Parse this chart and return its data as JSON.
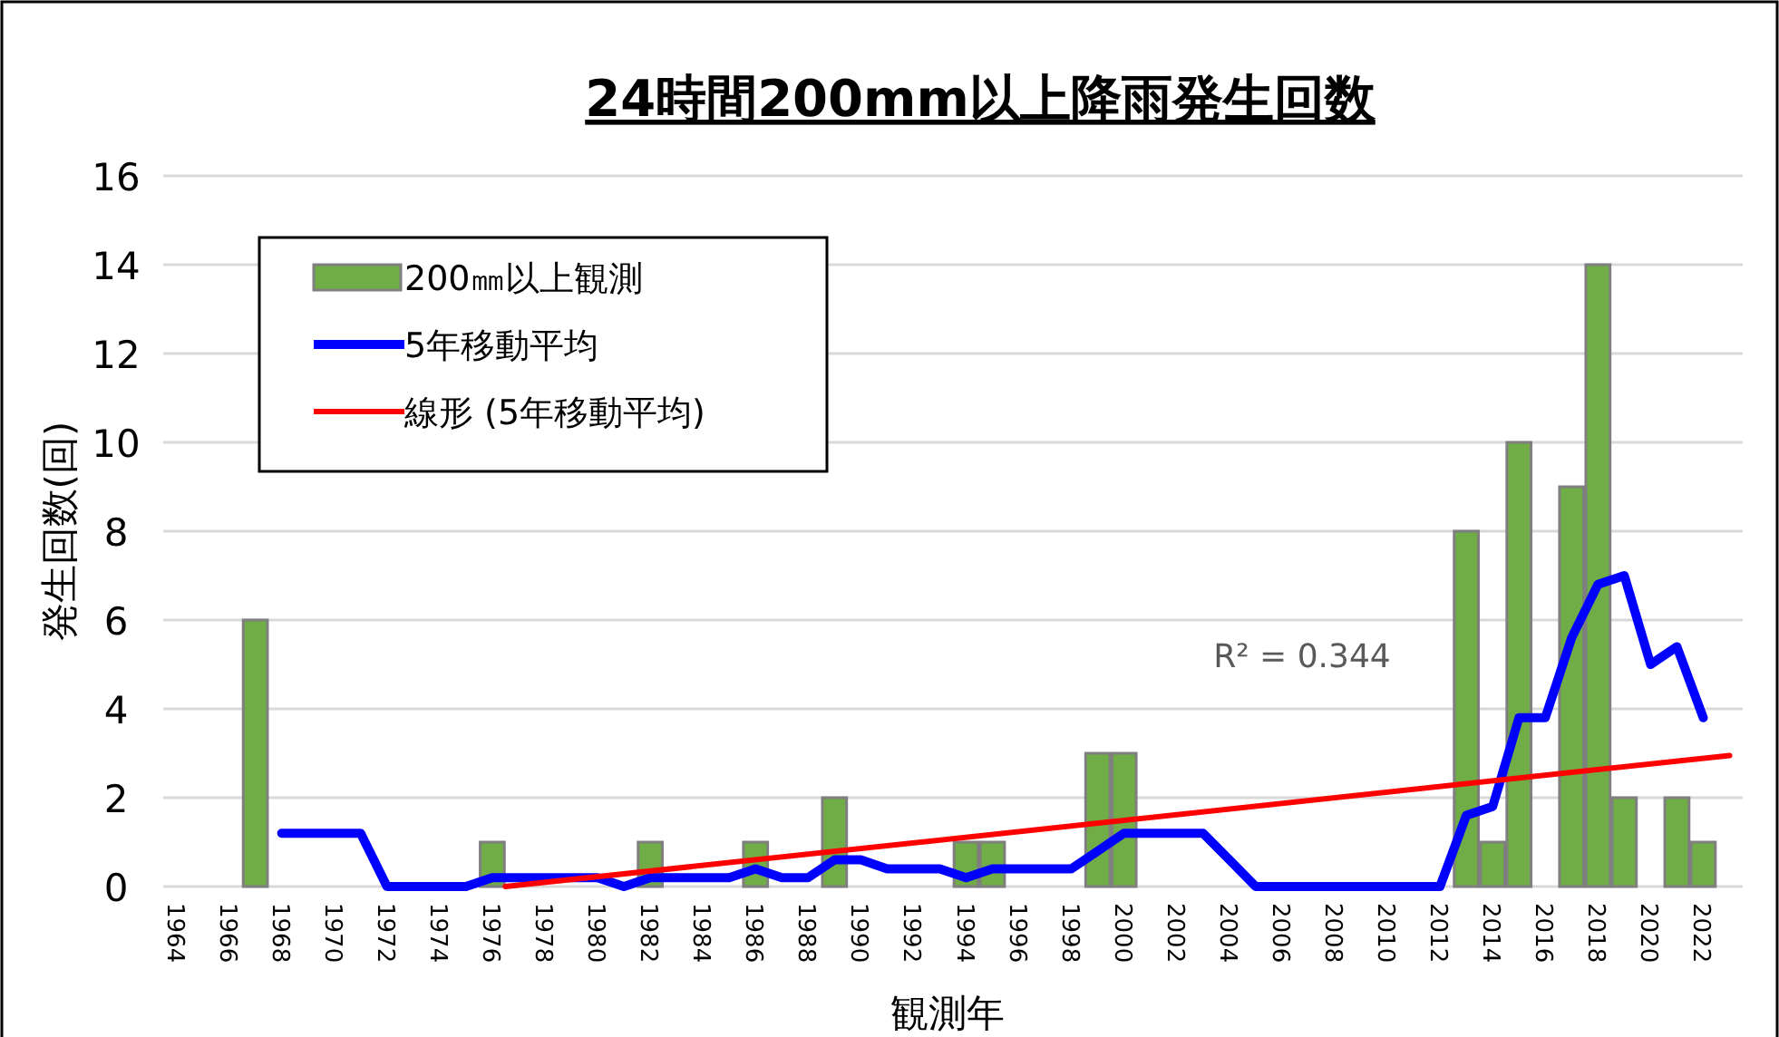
{
  "chart_data": {
    "type": "bar",
    "title": "24時間200mm以上降雨発生回数",
    "xlabel": "観測年",
    "ylabel": "発生回数(回)",
    "x": [
      1964,
      1965,
      1966,
      1967,
      1968,
      1969,
      1970,
      1971,
      1972,
      1973,
      1974,
      1975,
      1976,
      1977,
      1978,
      1979,
      1980,
      1981,
      1982,
      1983,
      1984,
      1985,
      1986,
      1987,
      1988,
      1989,
      1990,
      1991,
      1992,
      1993,
      1994,
      1995,
      1996,
      1997,
      1998,
      1999,
      2000,
      2001,
      2002,
      2003,
      2004,
      2005,
      2006,
      2007,
      2008,
      2009,
      2010,
      2011,
      2012,
      2013,
      2014,
      2015,
      2016,
      2017,
      2018,
      2019,
      2020,
      2021,
      2022
    ],
    "series": [
      {
        "name": "200㎜以上観測",
        "color": "#70ad47",
        "values": [
          0,
          0,
          0,
          6,
          0,
          0,
          0,
          0,
          0,
          0,
          0,
          0,
          1,
          0,
          0,
          0,
          0,
          0,
          1,
          0,
          0,
          0,
          1,
          0,
          0,
          2,
          0,
          0,
          0,
          0,
          1,
          1,
          0,
          0,
          0,
          3,
          3,
          0,
          0,
          0,
          0,
          0,
          0,
          0,
          0,
          0,
          0,
          0,
          0,
          8,
          1,
          10,
          0,
          9,
          14,
          2,
          0,
          2,
          1
        ]
      },
      {
        "name": "5年移動平均",
        "type": "line",
        "color": "#0000ff",
        "values": [
          null,
          null,
          null,
          null,
          1.2,
          1.2,
          1.2,
          1.2,
          0,
          0,
          0,
          0,
          0.2,
          0.2,
          0.2,
          0.2,
          0.2,
          0,
          0.2,
          0.2,
          0.2,
          0.2,
          0.4,
          0.2,
          0.2,
          0.6,
          0.6,
          0.4,
          0.4,
          0.4,
          0.2,
          0.4,
          0.4,
          0.4,
          0.4,
          0.8,
          1.2,
          1.2,
          1.2,
          1.2,
          0.6,
          0,
          0,
          0,
          0,
          0,
          0,
          0,
          0,
          1.6,
          1.8,
          3.8,
          3.8,
          5.6,
          6.8,
          7.0,
          5.0,
          5.4,
          3.8
        ]
      },
      {
        "name": "線形 (5年移動平均)",
        "type": "line",
        "color": "#ff0000",
        "x": [
          1976.5,
          2023
        ],
        "values": [
          0,
          2.95
        ]
      }
    ],
    "xlim": [
      1963.5,
      2023.5
    ],
    "xticks": [
      1964,
      1966,
      1968,
      1970,
      1972,
      1974,
      1976,
      1978,
      1980,
      1982,
      1984,
      1986,
      1988,
      1990,
      1992,
      1994,
      1996,
      1998,
      2000,
      2002,
      2004,
      2006,
      2008,
      2010,
      2012,
      2014,
      2016,
      2018,
      2020,
      2022
    ],
    "ylim": [
      0,
      16
    ],
    "yticks": [
      0,
      2,
      4,
      6,
      8,
      10,
      12,
      14,
      16
    ],
    "grid": "y",
    "legend": "top left",
    "annotations": [
      "R² = 0.344"
    ]
  }
}
